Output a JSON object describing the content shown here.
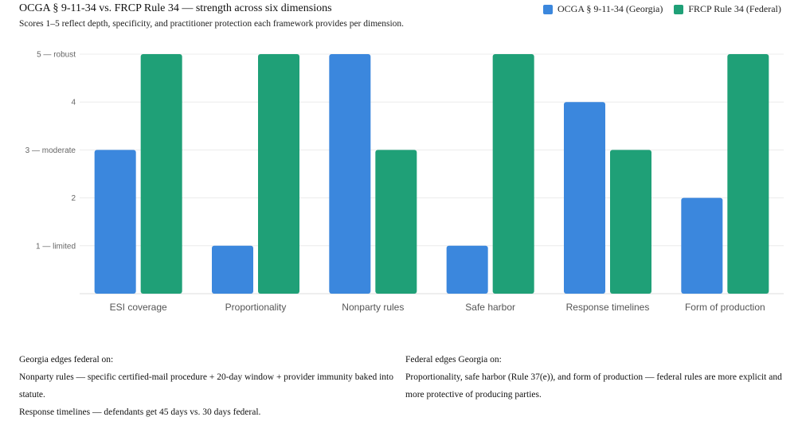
{
  "title": "OCGA § 9-11-34 vs. FRCP Rule 34 — strength across six dimensions",
  "subtitle": "Scores 1–5 reflect depth, specificity, and practitioner protection each framework provides per dimension.",
  "chart_data": {
    "type": "bar",
    "categories": [
      "ESI coverage",
      "Proportionality",
      "Nonparty rules",
      "Safe harbor",
      "Response timelines",
      "Form of production"
    ],
    "series": [
      {
        "name": "OCGA § 9-11-34 (Georgia)",
        "color": "#3b87dd",
        "values": [
          3,
          1,
          5,
          1,
          4,
          2
        ]
      },
      {
        "name": "FRCP Rule 34 (Federal)",
        "color": "#1fa077",
        "values": [
          5,
          5,
          3,
          5,
          3,
          5
        ]
      }
    ],
    "ylim": [
      0,
      5
    ],
    "yticks": [
      {
        "value": 1,
        "label": "1 — limited"
      },
      {
        "value": 2,
        "label": "2"
      },
      {
        "value": 3,
        "label": "3 — moderate"
      },
      {
        "value": 4,
        "label": "4"
      },
      {
        "value": 5,
        "label": "5 — robust"
      }
    ],
    "grid": true,
    "legend_position": "top-right"
  },
  "notes": {
    "georgia": {
      "heading": "Georgia edges federal on:",
      "line1": "Nonparty rules — specific certified-mail procedure + 20-day window + provider immunity baked into statute.",
      "line2": "Response timelines — defendants get 45 days vs. 30 days federal."
    },
    "federal": {
      "heading": "Federal edges Georgia on:",
      "line1": "Proportionality, safe harbor (Rule 37(e)), and form of production — federal rules are more explicit and more protective of producing parties."
    }
  }
}
